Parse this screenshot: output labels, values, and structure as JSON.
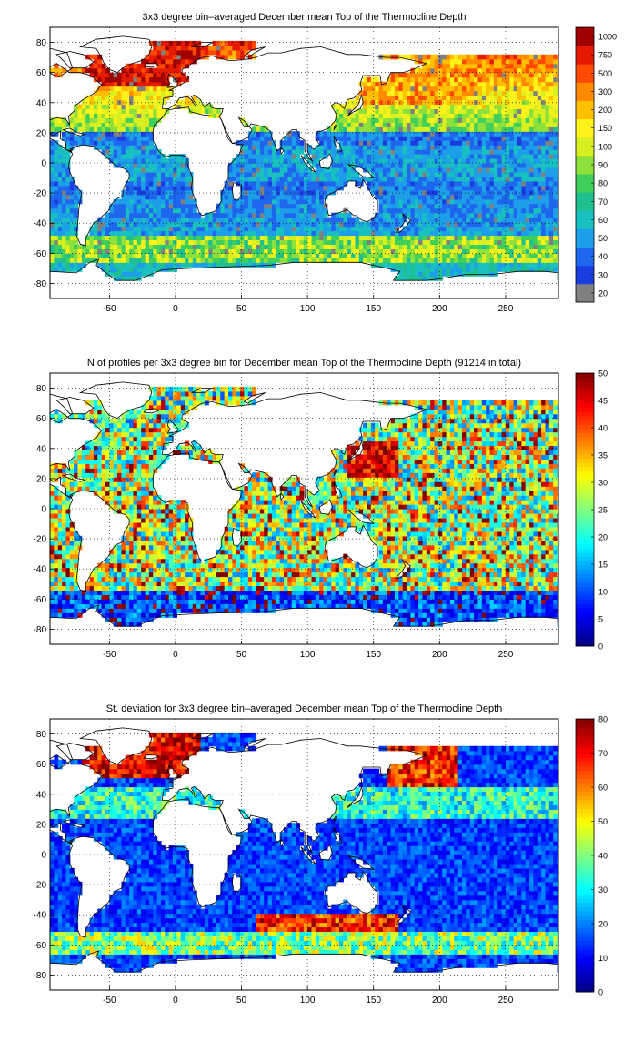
{
  "chart_data": [
    {
      "type": "heatmap",
      "title": "3x3 degree bin–averaged December mean Top of the Thermocline Depth",
      "xlim": [
        -95,
        290
      ],
      "ylim": [
        -90,
        90
      ],
      "xticks": [
        "-50",
        "0",
        "50",
        "100",
        "150",
        "200",
        "250"
      ],
      "xtick_values": [
        -50,
        0,
        50,
        100,
        150,
        200,
        250
      ],
      "yticks": [
        "80",
        "60",
        "40",
        "20",
        "0",
        "-20",
        "-40",
        "-60",
        "-80"
      ],
      "ytick_values": [
        80,
        60,
        40,
        20,
        0,
        -20,
        -40,
        -60,
        -80
      ],
      "grid": true,
      "colorbar": {
        "scale": "categorical",
        "labels": [
          "20",
          "30",
          "40",
          "50",
          "60",
          "70",
          "80",
          "90",
          "100",
          "150",
          "200",
          "300",
          "500",
          "750",
          "1000"
        ],
        "colors": [
          "#808080",
          "#1a3de0",
          "#1f66ee",
          "#1c9ee8",
          "#18c0c0",
          "#20bf90",
          "#3fcf5a",
          "#8ee03a",
          "#d8f020",
          "#fff21a",
          "#ffc000",
          "#ff8a00",
          "#ff4a00",
          "#e61a00",
          "#a00000"
        ]
      }
    },
    {
      "type": "heatmap",
      "title": "N of profiles per 3x3 degree bin for December mean Top of the Thermocline Depth  (91214 in total)",
      "xlim": [
        -95,
        290
      ],
      "ylim": [
        -90,
        90
      ],
      "xticks": [
        "-50",
        "0",
        "50",
        "100",
        "150",
        "200",
        "250"
      ],
      "xtick_values": [
        -50,
        0,
        50,
        100,
        150,
        200,
        250
      ],
      "yticks": [
        "80",
        "60",
        "40",
        "20",
        "0",
        "-20",
        "-40",
        "-60",
        "-80"
      ],
      "ytick_values": [
        80,
        60,
        40,
        20,
        0,
        -20,
        -40,
        -60,
        -80
      ],
      "grid": true,
      "colorbar": {
        "scale": "linear",
        "range": [
          0,
          50
        ],
        "labels": [
          "0",
          "5",
          "10",
          "15",
          "20",
          "25",
          "30",
          "35",
          "40",
          "45",
          "50"
        ]
      }
    },
    {
      "type": "heatmap",
      "title": "St. deviation for 3x3 degree bin–averaged December mean Top of the Thermocline Depth",
      "xlim": [
        -95,
        290
      ],
      "ylim": [
        -90,
        90
      ],
      "xticks": [
        "-50",
        "0",
        "50",
        "100",
        "150",
        "200",
        "250"
      ],
      "xtick_values": [
        -50,
        0,
        50,
        100,
        150,
        200,
        250
      ],
      "yticks": [
        "80",
        "60",
        "40",
        "20",
        "0",
        "-20",
        "-40",
        "-60",
        "-80"
      ],
      "ytick_values": [
        80,
        60,
        40,
        20,
        0,
        -20,
        -40,
        -60,
        -80
      ],
      "grid": true,
      "colorbar": {
        "scale": "linear",
        "range": [
          0,
          80
        ],
        "labels": [
          "0",
          "10",
          "20",
          "30",
          "40",
          "50",
          "60",
          "70",
          "80"
        ]
      }
    }
  ]
}
